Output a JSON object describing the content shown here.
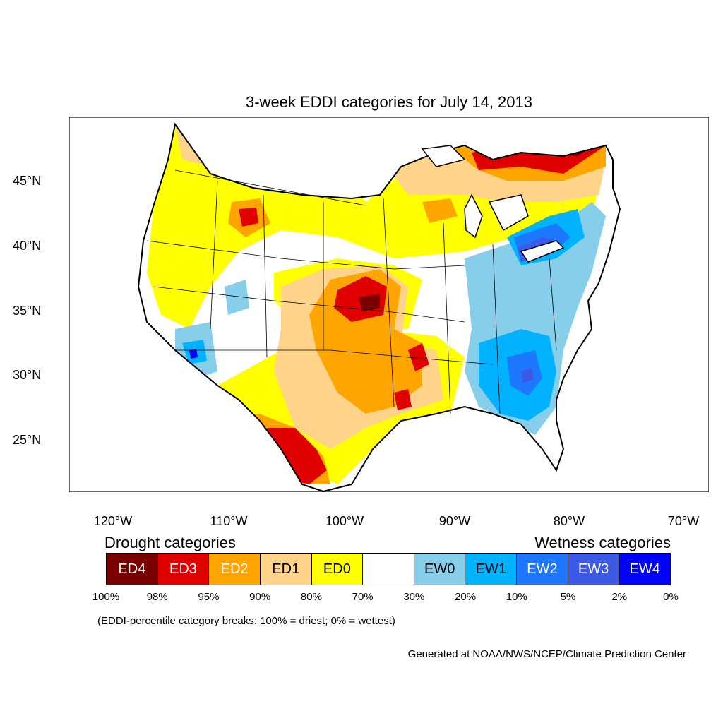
{
  "title": "3-week EDDI categories for July 14, 2013",
  "lat_labels": [
    "45°N",
    "40°N",
    "35°N",
    "30°N",
    "25°N"
  ],
  "lon_labels": [
    "120°W",
    "110°W",
    "100°W",
    "90°W",
    "80°W",
    "70°W"
  ],
  "legend": {
    "drought_title": "Drought categories",
    "wetness_title": "Wetness categories",
    "categories": [
      {
        "label": "ED4",
        "color": "#7a0000",
        "text_color": "#ffffff"
      },
      {
        "label": "ED3",
        "color": "#e10000",
        "text_color": "#ffffff"
      },
      {
        "label": "ED2",
        "color": "#ffa500",
        "text_color": "#ffffff"
      },
      {
        "label": "ED1",
        "color": "#ffd38a",
        "text_color": "#000000"
      },
      {
        "label": "ED0",
        "color": "#ffff00",
        "text_color": "#000000"
      },
      {
        "label": "",
        "color": "#ffffff",
        "text_color": "#000000"
      },
      {
        "label": "EW0",
        "color": "#87ceeb",
        "text_color": "#000000"
      },
      {
        "label": "EW1",
        "color": "#00b2ff",
        "text_color": "#000000"
      },
      {
        "label": "EW2",
        "color": "#1e78ff",
        "text_color": "#ffffff"
      },
      {
        "label": "EW3",
        "color": "#3c5ae6",
        "text_color": "#ffffff"
      },
      {
        "label": "EW4",
        "color": "#0000ff",
        "text_color": "#ffffff"
      }
    ],
    "breaks": [
      "100%",
      "98%",
      "95%",
      "90%",
      "80%",
      "70%",
      "30%",
      "20%",
      "10%",
      "5%",
      "2%",
      "0%"
    ],
    "note": "(EDDI-percentile category breaks: 100% = driest; 0% = wettest)"
  },
  "credit": "Generated at NOAA/NWS/NCEP/Climate Prediction Center"
}
